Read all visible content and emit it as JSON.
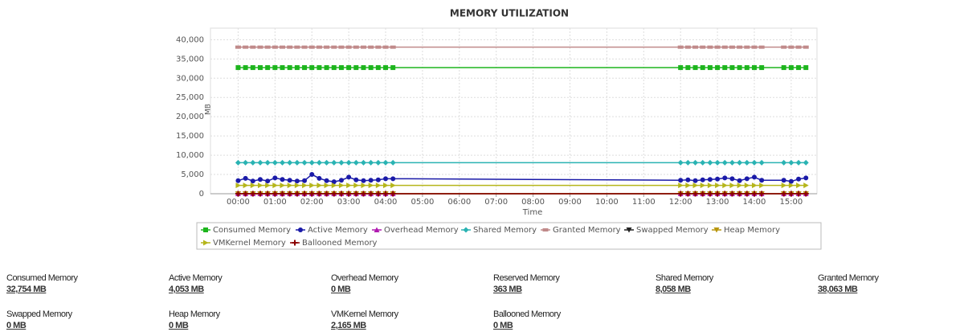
{
  "chart_data": {
    "type": "line",
    "title": "MEMORY UTILIZATION",
    "y_label": "MB",
    "x_label": "Time",
    "x": [
      0,
      0.2,
      0.4,
      0.6,
      0.8,
      1.0,
      1.2,
      1.4,
      1.6,
      1.8,
      2.0,
      2.2,
      2.4,
      2.6,
      2.8,
      3.0,
      3.2,
      3.4,
      3.6,
      3.8,
      4.0,
      4.2,
      12.0,
      12.2,
      12.4,
      12.6,
      12.8,
      13.0,
      13.2,
      13.4,
      13.6,
      13.8,
      14.0,
      14.2,
      14.8,
      15.0,
      15.2,
      15.4
    ],
    "xlim": [
      -0.75,
      15.7
    ],
    "xticks": [
      {
        "value": 0,
        "label": "00:00"
      },
      {
        "value": 1,
        "label": "01:00"
      },
      {
        "value": 2,
        "label": "02:00"
      },
      {
        "value": 3,
        "label": "03:00"
      },
      {
        "value": 4,
        "label": "04:00"
      },
      {
        "value": 5,
        "label": "05:00"
      },
      {
        "value": 6,
        "label": "06:00"
      },
      {
        "value": 7,
        "label": "07:00"
      },
      {
        "value": 8,
        "label": "08:00"
      },
      {
        "value": 9,
        "label": "09:00"
      },
      {
        "value": 10,
        "label": "10:00"
      },
      {
        "value": 11,
        "label": "11:00"
      },
      {
        "value": 12,
        "label": "12:00"
      },
      {
        "value": 13,
        "label": "13:00"
      },
      {
        "value": 14,
        "label": "14:00"
      },
      {
        "value": 15,
        "label": "15:00"
      }
    ],
    "ylim": [
      0,
      43000
    ],
    "yticks": [
      0,
      {
        "value": 5000,
        "label": "5,000"
      },
      {
        "value": 10000,
        "label": "10,000"
      },
      {
        "value": 15000,
        "label": "15,000"
      },
      {
        "value": 20000,
        "label": "20,000"
      },
      {
        "value": 25000,
        "label": "25,000"
      },
      {
        "value": 30000,
        "label": "30,000"
      },
      {
        "value": 35000,
        "label": "35,000"
      },
      {
        "value": 40000,
        "label": "40,000"
      }
    ],
    "grid": true,
    "series": [
      {
        "name": "Consumed Memory",
        "color": "#1db51d",
        "marker": "square",
        "values": [
          32754,
          32754,
          32754,
          32754,
          32754,
          32754,
          32754,
          32754,
          32754,
          32754,
          32754,
          32754,
          32754,
          32754,
          32754,
          32754,
          32754,
          32754,
          32754,
          32754,
          32754,
          32754,
          32754,
          32754,
          32754,
          32754,
          32754,
          32754,
          32754,
          32754,
          32754,
          32754,
          32754,
          32754,
          32754,
          32754,
          32754,
          32754
        ]
      },
      {
        "name": "Active Memory",
        "color": "#1a1aa8",
        "marker": "circle",
        "values": [
          3400,
          4000,
          3300,
          3700,
          3300,
          4100,
          3700,
          3500,
          3300,
          3400,
          5000,
          4000,
          3400,
          3100,
          3500,
          4300,
          3600,
          3400,
          3500,
          3600,
          3900,
          3900,
          3500,
          3600,
          3400,
          3600,
          3700,
          3800,
          4100,
          3900,
          3400,
          3900,
          4300,
          3500,
          3500,
          3200,
          3800,
          4100
        ]
      },
      {
        "name": "Overhead Memory",
        "color": "#b01ab0",
        "marker": "triangle-up",
        "values": [
          0,
          0,
          0,
          0,
          0,
          0,
          0,
          0,
          0,
          0,
          0,
          0,
          0,
          0,
          0,
          0,
          0,
          0,
          0,
          0,
          0,
          0,
          0,
          0,
          0,
          0,
          0,
          0,
          0,
          0,
          0,
          0,
          0,
          0,
          0,
          0,
          0,
          0
        ]
      },
      {
        "name": "Shared Memory",
        "color": "#2ab3b3",
        "marker": "diamond",
        "values": [
          8058,
          8058,
          8058,
          8058,
          8058,
          8058,
          8058,
          8058,
          8058,
          8058,
          8058,
          8058,
          8058,
          8058,
          8058,
          8058,
          8058,
          8058,
          8058,
          8058,
          8058,
          8058,
          8058,
          8058,
          8058,
          8058,
          8058,
          8058,
          8058,
          8058,
          8058,
          8058,
          8058,
          8058,
          8058,
          8058,
          8058,
          8058
        ]
      },
      {
        "name": "Granted Memory",
        "color": "#c08a8a",
        "marker": "rect",
        "values": [
          38063,
          38063,
          38063,
          38063,
          38063,
          38063,
          38063,
          38063,
          38063,
          38063,
          38063,
          38063,
          38063,
          38063,
          38063,
          38063,
          38063,
          38063,
          38063,
          38063,
          38063,
          38063,
          38063,
          38063,
          38063,
          38063,
          38063,
          38063,
          38063,
          38063,
          38063,
          38063,
          38063,
          38063,
          38063,
          38063,
          38063,
          38063
        ]
      },
      {
        "name": "Swapped Memory",
        "color": "#222222",
        "marker": "triangle-down",
        "values": [
          0,
          0,
          0,
          0,
          0,
          0,
          0,
          0,
          0,
          0,
          0,
          0,
          0,
          0,
          0,
          0,
          0,
          0,
          0,
          0,
          0,
          0,
          0,
          0,
          0,
          0,
          0,
          0,
          0,
          0,
          0,
          0,
          0,
          0,
          0,
          0,
          0,
          0
        ]
      },
      {
        "name": "Heap Memory",
        "color": "#b8960c",
        "marker": "triangle-down",
        "values": [
          0,
          0,
          0,
          0,
          0,
          0,
          0,
          0,
          0,
          0,
          0,
          0,
          0,
          0,
          0,
          0,
          0,
          0,
          0,
          0,
          0,
          0,
          0,
          0,
          0,
          0,
          0,
          0,
          0,
          0,
          0,
          0,
          0,
          0,
          0,
          0,
          0,
          0
        ]
      },
      {
        "name": "VMKernel Memory",
        "color": "#b5b51a",
        "marker": "triangle-right",
        "values": [
          2165,
          2165,
          2165,
          2165,
          2165,
          2165,
          2165,
          2165,
          2165,
          2165,
          2165,
          2165,
          2165,
          2165,
          2165,
          2165,
          2165,
          2165,
          2165,
          2165,
          2165,
          2165,
          2165,
          2165,
          2165,
          2165,
          2165,
          2165,
          2165,
          2165,
          2165,
          2165,
          2165,
          2165,
          2165,
          2165,
          2165,
          2165
        ]
      },
      {
        "name": "Ballooned Memory",
        "color": "#8b0000",
        "marker": "plus",
        "values": [
          0,
          0,
          0,
          0,
          0,
          0,
          0,
          0,
          0,
          0,
          0,
          0,
          0,
          0,
          0,
          0,
          0,
          0,
          0,
          0,
          0,
          0,
          0,
          0,
          0,
          0,
          0,
          0,
          0,
          0,
          0,
          0,
          0,
          0,
          0,
          0,
          0,
          0
        ]
      }
    ]
  },
  "stats": [
    {
      "label": "Consumed Memory",
      "value": "32,754 MB"
    },
    {
      "label": "Active Memory",
      "value": "4,053 MB"
    },
    {
      "label": "Overhead Memory",
      "value": "0 MB"
    },
    {
      "label": "Reserved Memory",
      "value": "363 MB"
    },
    {
      "label": "Shared Memory",
      "value": "8,058 MB"
    },
    {
      "label": "Granted Memory",
      "value": "38,063 MB"
    },
    {
      "label": "Swapped Memory",
      "value": "0 MB"
    },
    {
      "label": "Heap Memory",
      "value": "0 MB"
    },
    {
      "label": "VMKernel Memory",
      "value": "2,165 MB"
    },
    {
      "label": "Ballooned Memory",
      "value": "0 MB"
    }
  ]
}
